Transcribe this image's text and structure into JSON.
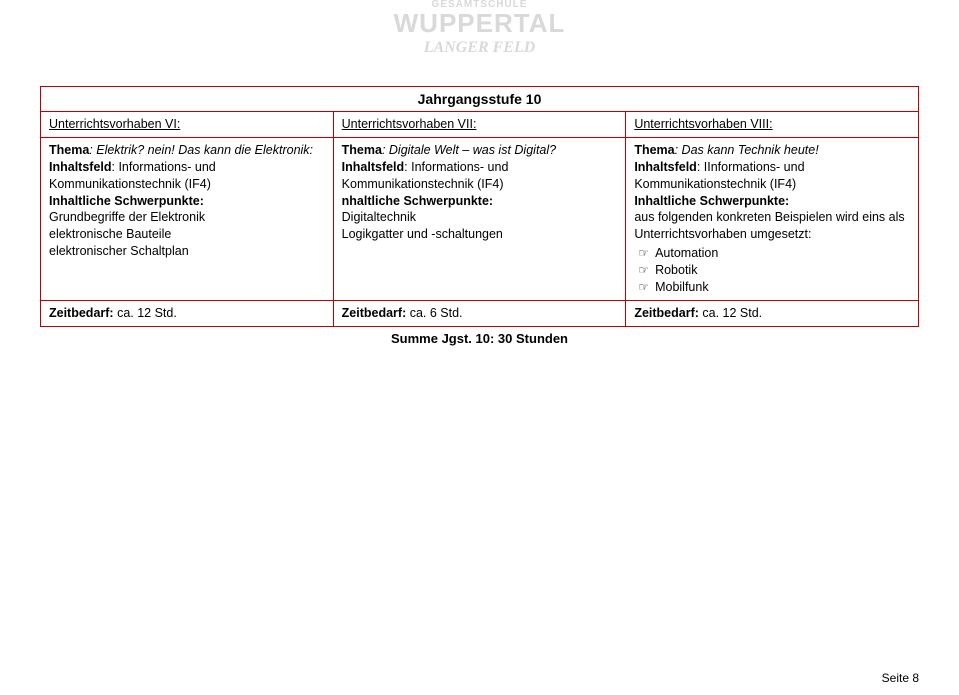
{
  "watermark": {
    "line1": "GESAMTSCHULE",
    "line2": "WUPPERTAL",
    "line3": "LANGER FELD"
  },
  "title": "Jahrgangsstufe 10",
  "columns": [
    {
      "heading": "Unterrichtsvorhaben VI:",
      "thema_label": "Thema",
      "thema_text": ": Elektrik? nein!  Das  kann die Elektronik:",
      "inhaltsfeld_label": "Inhaltsfeld",
      "inhaltsfeld_text": ": Informations- und Kommunikationstechnik (IF4)",
      "schwerpunkte_label": "Inhaltliche Schwerpunkte:",
      "schwerpunkte_lines": [
        "Grundbegriffe der Elektronik",
        "elektronische Bauteile",
        "elektronischer Schaltplan"
      ],
      "zeitbedarf_label": "Zeitbedarf:",
      "zeitbedarf_text": " ca. 12 Std."
    },
    {
      "heading": "Unterrichtsvorhaben VII:",
      "thema_label": "Thema",
      "thema_text": ": Digitale Welt – was ist Digital?",
      "inhaltsfeld_label": "Inhaltsfeld",
      "inhaltsfeld_text": ": Informations- und Kommunikationstechnik (IF4)",
      "schwerpunkte_label": "nhaltliche Schwerpunkte:",
      "schwerpunkte_lines": [
        "Digitaltechnik",
        "Logikgatter und -schaltungen"
      ],
      "zeitbedarf_label": "Zeitbedarf:",
      "zeitbedarf_text": " ca. 6 Std."
    },
    {
      "heading": "Unterrichtsvorhaben VIII:",
      "thema_label": "Thema",
      "thema_text": ": Das kann Technik heute!",
      "inhaltsfeld_label": "Inhaltsfeld",
      "inhaltsfeld_text": ": IInformations- und Kommunikationstechnik (IF4)",
      "schwerpunkte_label": "Inhaltliche Schwerpunkte:",
      "schwerpunkte_intro": "aus folgenden konkreten Beispielen wird eins als Unterrichtsvorhaben umgesetzt:",
      "bullets": [
        "Automation",
        "Robotik",
        "Mobilfunk"
      ],
      "zeitbedarf_label": "Zeitbedarf:",
      "zeitbedarf_text": " ca. 12 Std."
    }
  ],
  "summe": "Summe Jgst. 10: 30 Stunden",
  "footer": "Seite 8",
  "colors": {
    "border": "#c00000",
    "watermark": "#d9d9d9",
    "background": "#ffffff",
    "text": "#000000"
  }
}
